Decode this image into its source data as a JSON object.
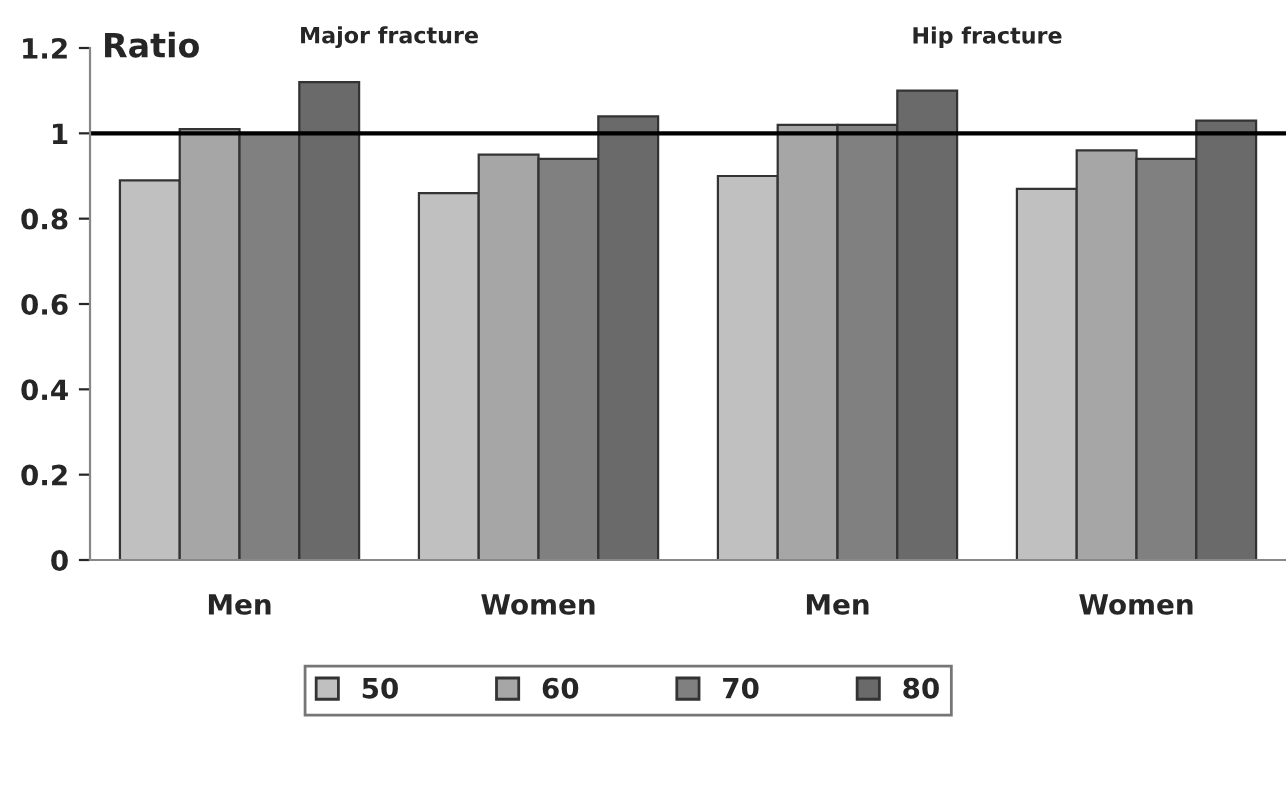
{
  "chart_data": {
    "type": "bar",
    "ylabel": "Ratio",
    "categories": [
      "Men",
      "Women",
      "Men",
      "Women"
    ],
    "series": [
      {
        "name": "50",
        "color": "#c0c0c0",
        "values": [
          0.89,
          0.86,
          0.9,
          0.87
        ]
      },
      {
        "name": "60",
        "color": "#a6a6a6",
        "values": [
          1.01,
          0.95,
          1.02,
          0.96
        ]
      },
      {
        "name": "70",
        "color": "#808080",
        "values": [
          1.0,
          0.94,
          1.02,
          0.94
        ]
      },
      {
        "name": "80",
        "color": "#6a6a6a",
        "values": [
          1.12,
          1.04,
          1.1,
          1.03
        ]
      }
    ],
    "ylim": [
      0,
      1.2
    ],
    "yticks": [
      0,
      0.2,
      0.4,
      0.6,
      0.8,
      1,
      1.2
    ],
    "ref_lines": [
      {
        "axis": "y",
        "value": 1,
        "color": "#000000"
      }
    ],
    "annotations": [
      "Major fracture",
      "Hip fracture"
    ],
    "grid": false,
    "legend": "bottom"
  }
}
